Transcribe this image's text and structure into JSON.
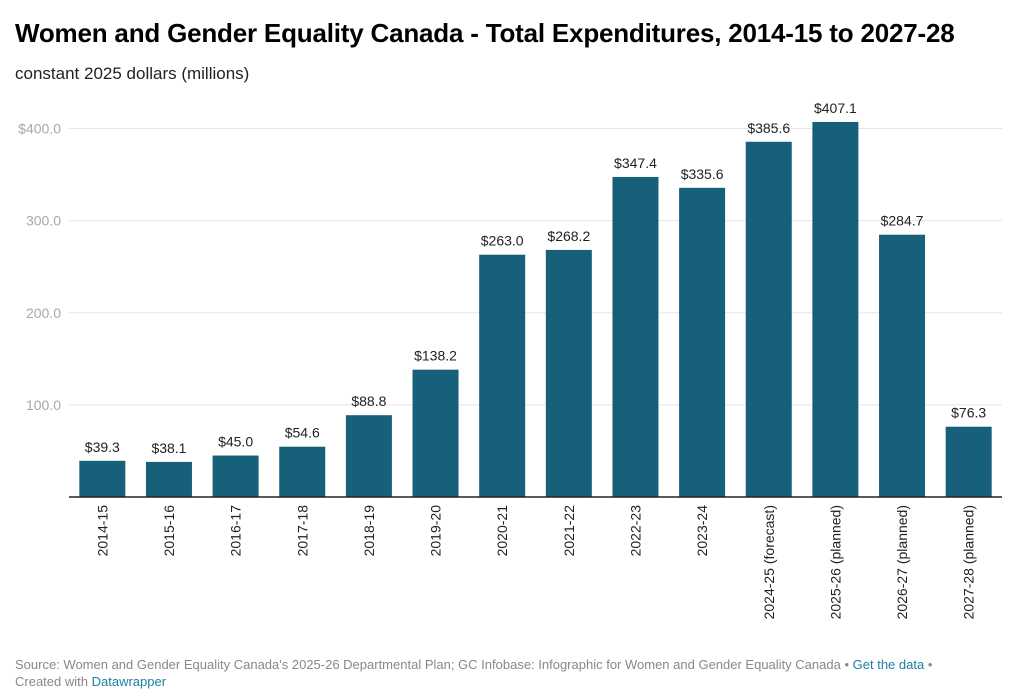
{
  "chart_data": {
    "type": "bar",
    "title": "Women and Gender Equality Canada - Total Expenditures, 2014-15 to 2027-28",
    "subtitle": "constant 2025 dollars (millions)",
    "xlabel": "",
    "ylabel": "",
    "ylim": [
      0,
      400
    ],
    "yticks": [
      100,
      200,
      300,
      400
    ],
    "ytick_labels": [
      "100.0",
      "200.0",
      "300.0",
      "$400.0"
    ],
    "grid": true,
    "bar_color": "#17607a",
    "categories": [
      "2014-15",
      "2015-16",
      "2016-17",
      "2017-18",
      "2018-19",
      "2019-20",
      "2020-21",
      "2021-22",
      "2022-23",
      "2023-24",
      "2024-25 (forecast)",
      "2025-26 (planned)",
      "2026-27 (planned)",
      "2027-28 (planned)"
    ],
    "values": [
      39.3,
      38.1,
      45.0,
      54.6,
      88.8,
      138.2,
      263.0,
      268.2,
      347.4,
      335.6,
      385.6,
      407.1,
      284.7,
      76.3
    ],
    "value_labels": [
      "$39.3",
      "$38.1",
      "$45.0",
      "$54.6",
      "$88.8",
      "$138.2",
      "$263.0",
      "$268.2",
      "$347.4",
      "$335.6",
      "$385.6",
      "$407.1",
      "$284.7",
      "$76.3"
    ]
  },
  "footer": {
    "source": "Source: Women and Gender Equality Canada's 2025-26 Departmental Plan; GC Infobase: Infographic for Women and Gender Equality Canada",
    "get_data": "Get the data",
    "created_with": "Created with",
    "datawrapper": "Datawrapper",
    "separator": "•",
    "link_color": "#1d81a2"
  }
}
